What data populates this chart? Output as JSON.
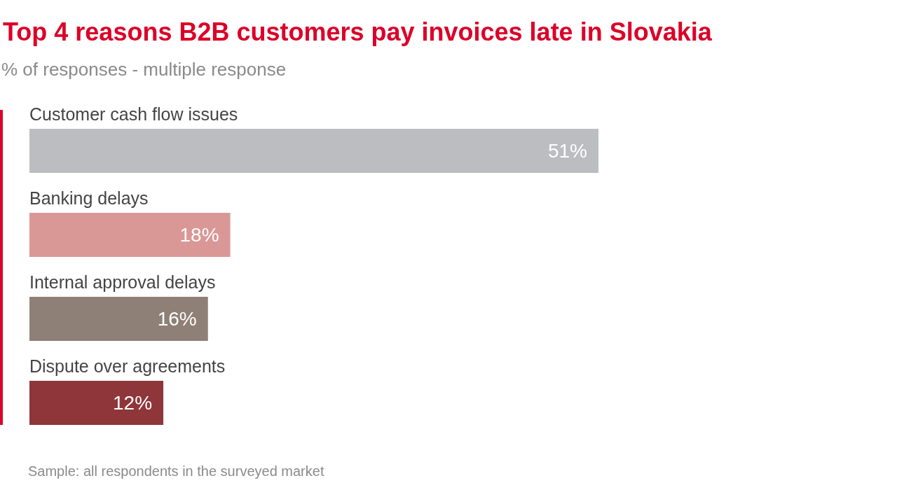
{
  "chart_data": {
    "type": "bar",
    "orientation": "horizontal",
    "title": "Top 4 reasons B2B customers pay invoices late in Slovakia",
    "subtitle": "% of responses - multiple response",
    "categories": [
      "Customer cash flow issues",
      "Banking delays",
      "Internal approval delays",
      "Dispute over agreements"
    ],
    "values": [
      51,
      18,
      16,
      12
    ],
    "colors": [
      "#bcbdc1",
      "#d99896",
      "#8f8077",
      "#8f363b"
    ],
    "value_labels": [
      "51%",
      "18%",
      "16%",
      "12%"
    ],
    "annotations": [
      "Sample: all respondents in the surveyed market"
    ]
  }
}
